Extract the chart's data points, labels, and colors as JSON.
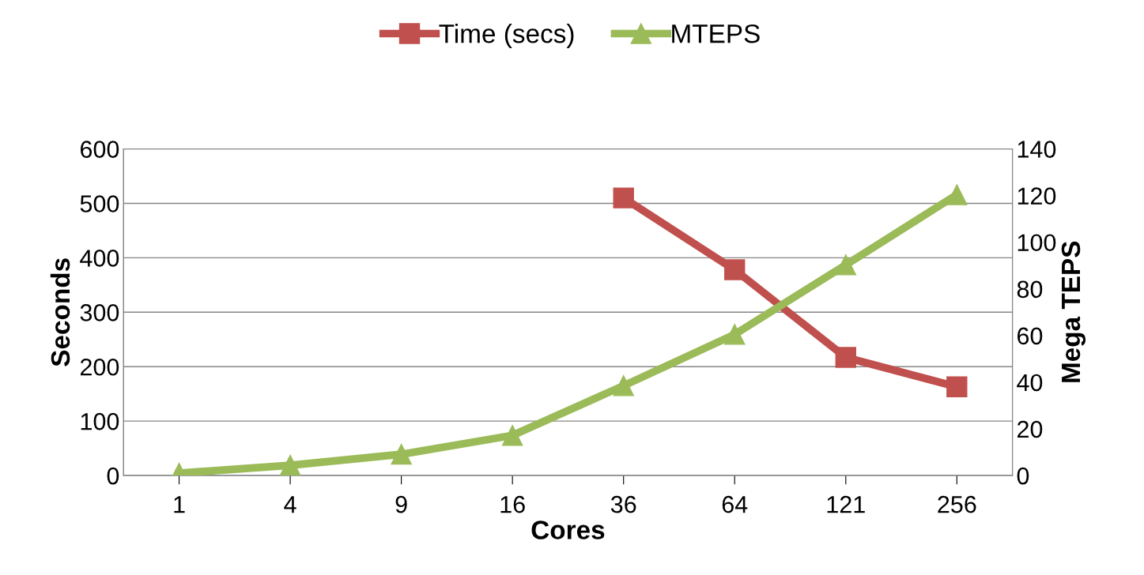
{
  "chart_data": {
    "type": "line",
    "xlabel": "Cores",
    "ylabel": "Seconds",
    "y2label": "Mega TEPS",
    "categories": [
      "1",
      "4",
      "9",
      "16",
      "36",
      "64",
      "121",
      "256"
    ],
    "series": [
      {
        "name": "Time (secs)",
        "color": "#c0504d",
        "marker": "square",
        "values": [
          null,
          null,
          null,
          null,
          510,
          378,
          217,
          163
        ]
      },
      {
        "name": "MTEPS",
        "color": "#9bbb59",
        "marker": "triangle",
        "axis": "y2",
        "values": [
          1,
          4.4,
          9.1,
          17.2,
          38.5,
          60.5,
          90.3,
          120.4
        ]
      }
    ],
    "ylim": [
      0,
      600
    ],
    "yticks": [
      0,
      100,
      200,
      300,
      400,
      500,
      600
    ],
    "y2lim": [
      0,
      140
    ],
    "y2ticks": [
      0,
      20,
      40,
      60,
      80,
      100,
      120,
      140
    ],
    "grid": "y",
    "legend": "top",
    "line_style": "solid"
  }
}
